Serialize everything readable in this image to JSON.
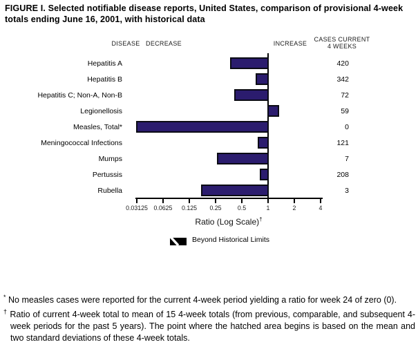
{
  "title": "FIGURE I. Selected notifiable disease reports, United States, comparison of provisional 4-week totals ending June 16, 2001, with historical data",
  "headers": {
    "disease": "DISEASE",
    "decrease": "DECREASE",
    "increase": "INCREASE",
    "cases_line1": "CASES CURRENT",
    "cases_line2": "4 WEEKS"
  },
  "chart_data": {
    "type": "bar",
    "orientation": "horizontal",
    "scale": "log2",
    "categories": [
      "Hepatitis A",
      "Hepatitis B",
      "Hepatitis C; Non-A, Non-B",
      "Legionellosis",
      "Measles, Total*",
      "Meningococcal Infections",
      "Mumps",
      "Pertussis",
      "Rubella"
    ],
    "series": [
      {
        "name": "Ratio (Log Scale)",
        "values": [
          0.37,
          0.72,
          0.41,
          1.31,
          0,
          0.76,
          0.26,
          0.8,
          0.17
        ]
      },
      {
        "name": "CASES CURRENT 4 WEEKS",
        "values": [
          420,
          342,
          72,
          59,
          0,
          121,
          7,
          208,
          3
        ]
      }
    ],
    "baseline_ratio": 1,
    "ticks": [
      0.03125,
      0.0625,
      0.125,
      0.25,
      0.5,
      1,
      2,
      4
    ],
    "xlim": [
      0.03,
      4.6
    ],
    "xlabel": "Ratio (Log Scale)",
    "xlabel_sup": "†",
    "bar_color": "#2B1C6E",
    "legend": [
      {
        "label": "Beyond Historical Limits",
        "swatch": "black-box-white-diagonal-hatch"
      }
    ],
    "legend_position": "bottom-center",
    "grid": false
  },
  "footnotes": [
    {
      "marker": "*",
      "text": "No measles cases were reported for the current 4-week period yielding a ratio for week 24 of zero (0)."
    },
    {
      "marker": "†",
      "text": "Ratio of current 4-week total to mean of 15 4-week totals (from previous, comparable, and subsequent 4-week periods for the past 5 years). The point where the hatched area begins is based on the mean and two standard deviations of these 4-week totals."
    }
  ]
}
